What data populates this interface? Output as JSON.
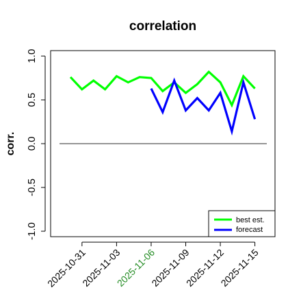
{
  "chart_data": {
    "type": "line",
    "title": "correlation",
    "xlabel": "",
    "ylabel": "corr.",
    "ylim": [
      -1.0,
      1.0
    ],
    "yticks": [
      "-1.0",
      "-0.5",
      "0.0",
      "0.5",
      "1.0"
    ],
    "xticks": [
      "2025-10-31",
      "2025-11-03",
      "2025-11-06",
      "2025-11-09",
      "2025-11-12",
      "2025-11-15"
    ],
    "highlighted_tick": "2025-11-06",
    "highlight_color": "#228B22",
    "x_dates": [
      "2025-10-30",
      "2025-10-31",
      "2025-11-01",
      "2025-11-02",
      "2025-11-03",
      "2025-11-04",
      "2025-11-05",
      "2025-11-06",
      "2025-11-07",
      "2025-11-08",
      "2025-11-09",
      "2025-11-10",
      "2025-11-11",
      "2025-11-12",
      "2025-11-13",
      "2025-11-14",
      "2025-11-15"
    ],
    "series": [
      {
        "name": "best est.",
        "color": "#00ff00",
        "x": [
          "2025-10-30",
          "2025-10-31",
          "2025-11-01",
          "2025-11-02",
          "2025-11-03",
          "2025-11-04",
          "2025-11-05",
          "2025-11-06",
          "2025-11-07",
          "2025-11-08",
          "2025-11-09",
          "2025-11-10",
          "2025-11-11",
          "2025-11-12",
          "2025-11-13",
          "2025-11-14",
          "2025-11-15"
        ],
        "values": [
          0.76,
          0.62,
          0.72,
          0.62,
          0.77,
          0.7,
          0.76,
          0.75,
          0.6,
          0.7,
          0.58,
          0.68,
          0.82,
          0.7,
          0.44,
          0.77,
          0.63
        ]
      },
      {
        "name": "forecast",
        "color": "#0000ff",
        "x": [
          "2025-11-06",
          "2025-11-07",
          "2025-11-08",
          "2025-11-09",
          "2025-11-10",
          "2025-11-11",
          "2025-11-12",
          "2025-11-13",
          "2025-11-14",
          "2025-11-15"
        ],
        "values": [
          0.63,
          0.36,
          0.72,
          0.38,
          0.52,
          0.38,
          0.58,
          0.14,
          0.7,
          0.28
        ]
      }
    ],
    "reference_line": {
      "y": 0.0,
      "color": "#555555"
    },
    "grid": false,
    "legend": "bottom-right"
  }
}
